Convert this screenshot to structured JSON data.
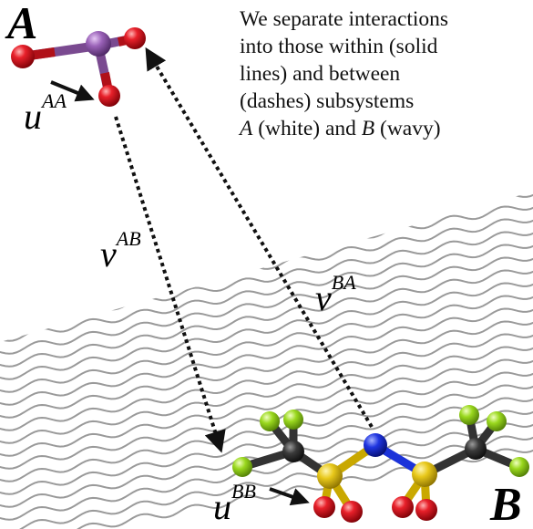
{
  "caption": {
    "line1": "We separate interactions",
    "line2": "into those within (solid",
    "line3": "lines) and between",
    "line4": "(dashes) subsystems",
    "line5_a": "A",
    "line5_b": " (white) and ",
    "line5_c": "B",
    "line5_d": " (wavy)"
  },
  "subsystem_labels": {
    "a": "A",
    "b": "B"
  },
  "interactions": {
    "uAA": {
      "base": "u",
      "sup": "AA"
    },
    "uBB": {
      "base": "u",
      "sup": "BB"
    },
    "vAB": {
      "base": "v",
      "sup": "AB"
    },
    "vBA": {
      "base": "v",
      "sup": "BA"
    }
  },
  "colors": {
    "wave": "#9a9a9a",
    "arrow": "#111111",
    "atom_oxygen": "#d0121b",
    "atom_phosphorus": "#8c5aa8",
    "atom_fluorine": "#8fd21a",
    "atom_carbon": "#333333",
    "atom_sulfur": "#e6c618",
    "atom_nitrogen": "#1c33d9"
  }
}
